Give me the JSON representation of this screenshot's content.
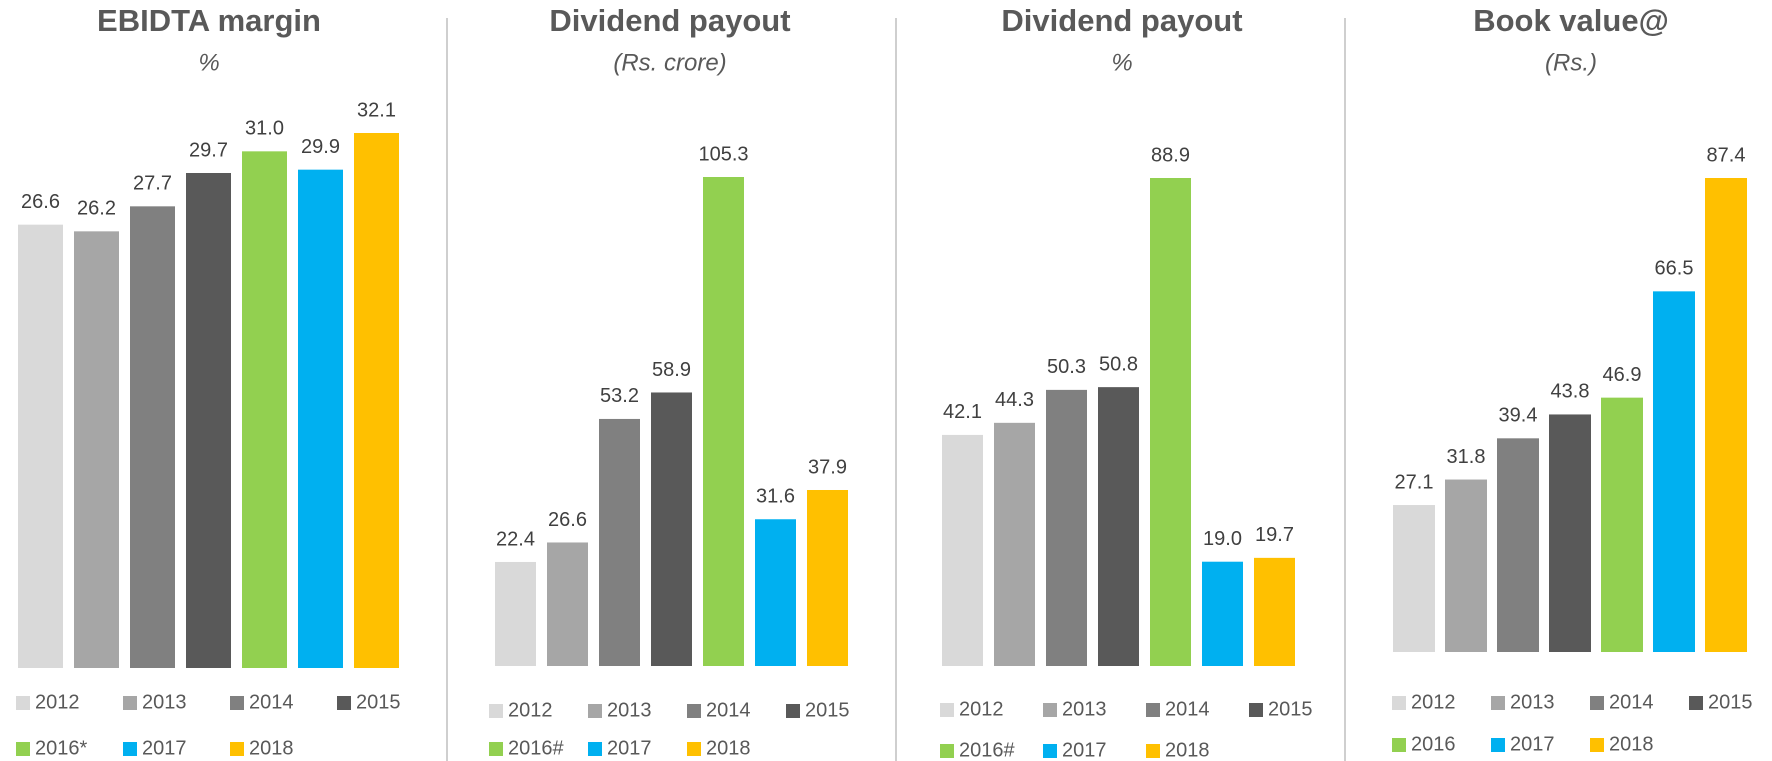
{
  "chart_data": [
    {
      "type": "bar",
      "title": "EBIDTA margin",
      "subtitle": "%",
      "categories": [
        "2012",
        "2013",
        "2014",
        "2015",
        "2016*",
        "2017",
        "2018"
      ],
      "values": [
        26.6,
        26.2,
        27.7,
        29.7,
        31.0,
        29.9,
        32.1
      ],
      "value_labels": [
        "26.6",
        "26.2",
        "27.7",
        "29.7",
        "31.0",
        "29.9",
        "32.1"
      ],
      "colors": [
        "#d9d9d9",
        "#a6a6a6",
        "#808080",
        "#595959",
        "#92d050",
        "#00b0f0",
        "#ffc000"
      ]
    },
    {
      "type": "bar",
      "title": "Dividend payout",
      "subtitle": "(Rs. crore)",
      "categories": [
        "2012",
        "2013",
        "2014",
        "2015",
        "2016#",
        "2017",
        "2018"
      ],
      "values": [
        22.4,
        26.6,
        53.2,
        58.9,
        105.3,
        31.6,
        37.9
      ],
      "value_labels": [
        "22.4",
        "26.6",
        "53.2",
        "58.9",
        "105.3",
        "31.6",
        "37.9"
      ],
      "colors": [
        "#d9d9d9",
        "#a6a6a6",
        "#808080",
        "#595959",
        "#92d050",
        "#00b0f0",
        "#ffc000"
      ]
    },
    {
      "type": "bar",
      "title": "Dividend payout",
      "subtitle": "%",
      "categories": [
        "2012",
        "2013",
        "2014",
        "2015",
        "2016#",
        "2017",
        "2018"
      ],
      "values": [
        42.1,
        44.3,
        50.3,
        50.8,
        88.9,
        19.0,
        19.7
      ],
      "value_labels": [
        "42.1",
        "44.3",
        "50.3",
        "50.8",
        "88.9",
        "19.0",
        "19.7"
      ],
      "colors": [
        "#d9d9d9",
        "#a6a6a6",
        "#808080",
        "#595959",
        "#92d050",
        "#00b0f0",
        "#ffc000"
      ]
    },
    {
      "type": "bar",
      "title": "Book value@",
      "subtitle": "(Rs.)",
      "categories": [
        "2012",
        "2013",
        "2014",
        "2015",
        "2016",
        "2017",
        "2018"
      ],
      "values": [
        27.1,
        31.8,
        39.4,
        43.8,
        46.9,
        66.5,
        87.4
      ],
      "value_labels": [
        "27.1",
        "31.8",
        "39.4",
        "43.8",
        "46.9",
        "66.5",
        "87.4"
      ],
      "colors": [
        "#d9d9d9",
        "#a6a6a6",
        "#808080",
        "#595959",
        "#92d050",
        "#00b0f0",
        "#ffc000"
      ]
    }
  ]
}
